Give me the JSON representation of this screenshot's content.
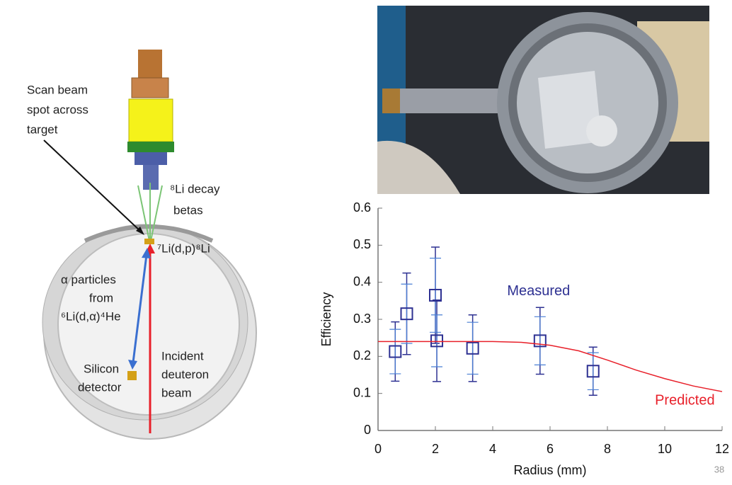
{
  "diagram": {
    "scan_label": [
      "Scan beam",
      "spot across",
      "target"
    ],
    "beta_label": [
      "⁸Li decay",
      "betas"
    ],
    "reaction_label": "⁷Li(d,p)⁸Li",
    "alpha_label": [
      "α particles",
      "from",
      "⁶Li(d,α)⁴He"
    ],
    "detector_label": [
      "Silicon",
      "detector"
    ],
    "beam_label": [
      "Incident",
      "deuteron",
      "beam"
    ]
  },
  "chart_data": {
    "type": "scatter",
    "x_label": "Radius (mm)",
    "y_label": "Efficiency",
    "xlim": [
      0,
      12
    ],
    "xticks": [
      0,
      2,
      4,
      6,
      8,
      10,
      12
    ],
    "ylim": [
      0,
      0.6
    ],
    "yticks": [
      0,
      0.1,
      0.2,
      0.3,
      0.4,
      0.5,
      0.6
    ],
    "series": [
      {
        "name": "Measured",
        "color": "#2e3192",
        "error_color": "#4a7fd4",
        "x": [
          0.6,
          1.0,
          2.0,
          2.05,
          3.3,
          5.65,
          7.5
        ],
        "values": [
          0.213,
          0.315,
          0.365,
          0.242,
          0.222,
          0.242,
          0.16
        ],
        "error_inner": [
          0.06,
          0.08,
          0.1,
          0.07,
          0.07,
          0.065,
          0.05
        ],
        "error_outer": [
          0.08,
          0.11,
          0.13,
          0.11,
          0.09,
          0.09,
          0.065
        ]
      },
      {
        "name": "Predicted",
        "color": "#e8202a",
        "type": "line",
        "x": [
          0,
          2,
          4,
          5,
          6,
          7,
          8,
          9,
          10,
          11,
          12
        ],
        "values": [
          0.24,
          0.24,
          0.24,
          0.238,
          0.23,
          0.215,
          0.19,
          0.163,
          0.14,
          0.12,
          0.105
        ]
      }
    ]
  },
  "page_number": "38"
}
